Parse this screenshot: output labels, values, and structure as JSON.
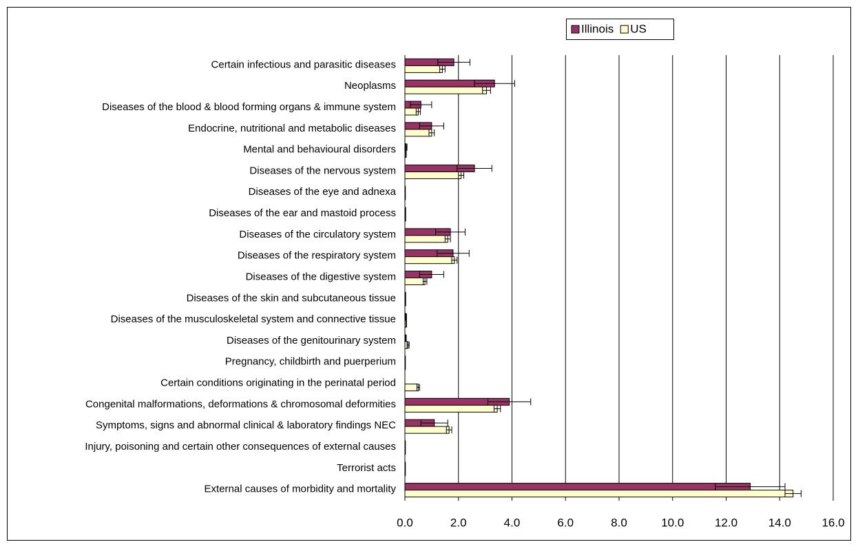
{
  "chart_data": {
    "type": "bar",
    "orientation": "horizontal",
    "categories": [
      "Certain infectious and parasitic diseases",
      "Neoplasms",
      "Diseases of the blood & blood forming organs & immune system",
      "Endocrine, nutritional and metabolic diseases",
      "Mental and behavioural disorders",
      "Diseases of the nervous system",
      "Diseases of the eye and adnexa",
      "Diseases of the ear and mastoid process",
      "Diseases of the circulatory system",
      "Diseases of the respiratory system",
      "Diseases of the digestive system",
      "Diseases of the skin and subcutaneous tissue",
      "Diseases of the musculoskeletal system and connective tissue",
      "Diseases of the genitourinary system",
      "Pregnancy, childbirth and puerperium",
      "Certain conditions originating in the perinatal period",
      "Congenital malformations, deformations & chromosomal deformities",
      "Symptoms, signs and abnormal clinical & laboratory findings NEC",
      "Injury, poisoning and certain other consequences of external causes",
      "Terrorist acts",
      "External causes of morbidity and mortality"
    ],
    "series": [
      {
        "name": "Illinois",
        "color": "#993366",
        "values": [
          1.83,
          3.35,
          0.6,
          1.0,
          0.05,
          2.6,
          0.01,
          0.02,
          1.7,
          1.8,
          1.0,
          0.02,
          0.04,
          0.03,
          0.01,
          0,
          3.9,
          1.1,
          0.01,
          0.01,
          12.9
        ],
        "errors": [
          0.6,
          0.75,
          0.4,
          0.45,
          0.03,
          0.65,
          0.01,
          0.01,
          0.55,
          0.6,
          0.45,
          0.01,
          0.02,
          0.02,
          0.01,
          0,
          0.8,
          0.5,
          0.01,
          0.01,
          1.3
        ]
      },
      {
        "name": "US",
        "color": "#ffffcc",
        "values": [
          1.4,
          3.05,
          0.5,
          1.0,
          0.04,
          2.1,
          0.01,
          0.02,
          1.6,
          1.85,
          0.75,
          0.02,
          0.05,
          0.12,
          0.01,
          0.5,
          3.45,
          1.65,
          0.01,
          0.01,
          14.5
        ],
        "errors": [
          0.1,
          0.15,
          0.08,
          0.1,
          0.01,
          0.1,
          0.01,
          0.01,
          0.1,
          0.1,
          0.07,
          0.01,
          0.01,
          0.04,
          0.01,
          0.05,
          0.12,
          0.1,
          0.01,
          0.01,
          0.3
        ]
      }
    ],
    "xlim": [
      0,
      16
    ],
    "xticks": [
      {
        "value": 0,
        "label": "0.0"
      },
      {
        "value": 2,
        "label": "2.0"
      },
      {
        "value": 4,
        "label": "4.0"
      },
      {
        "value": 6,
        "label": "6.0"
      },
      {
        "value": 8,
        "label": "8.0"
      },
      {
        "value": 10,
        "label": "10.0"
      },
      {
        "value": 12,
        "label": "12.0"
      },
      {
        "value": 14,
        "label": "14.0"
      },
      {
        "value": 16,
        "label": "16.0"
      }
    ],
    "grid": true,
    "legend": "top"
  }
}
